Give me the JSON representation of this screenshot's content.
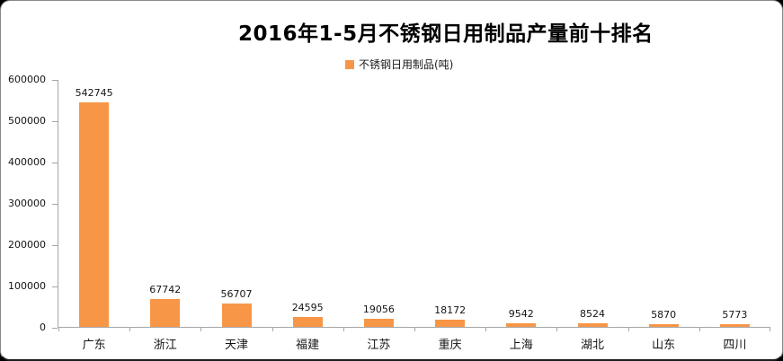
{
  "chart_data": {
    "type": "bar",
    "title": "2016年1-5月不锈钢日用制品产量前十排名",
    "legend": "不锈钢日用制品(吨)",
    "categories": [
      "广东",
      "浙江",
      "天津",
      "福建",
      "江苏",
      "重庆",
      "上海",
      "湖北",
      "山东",
      "四川"
    ],
    "values": [
      542745,
      67742,
      56707,
      24595,
      19056,
      18172,
      9542,
      8524,
      5870,
      5773
    ],
    "xlabel": "",
    "ylabel": "",
    "ylim": [
      0,
      600000
    ],
    "ytick_step": 100000,
    "y_tick_labels": [
      "0",
      "100000",
      "200000",
      "300000",
      "400000",
      "500000",
      "600000"
    ],
    "grid": "off",
    "legend_position": "top-center",
    "value_labels": "above-bars",
    "colors": {
      "bar": "#F79646",
      "axis": "#A6A6A6",
      "text": "#141414",
      "title": "#000000",
      "background": "#FFFFFF"
    }
  }
}
